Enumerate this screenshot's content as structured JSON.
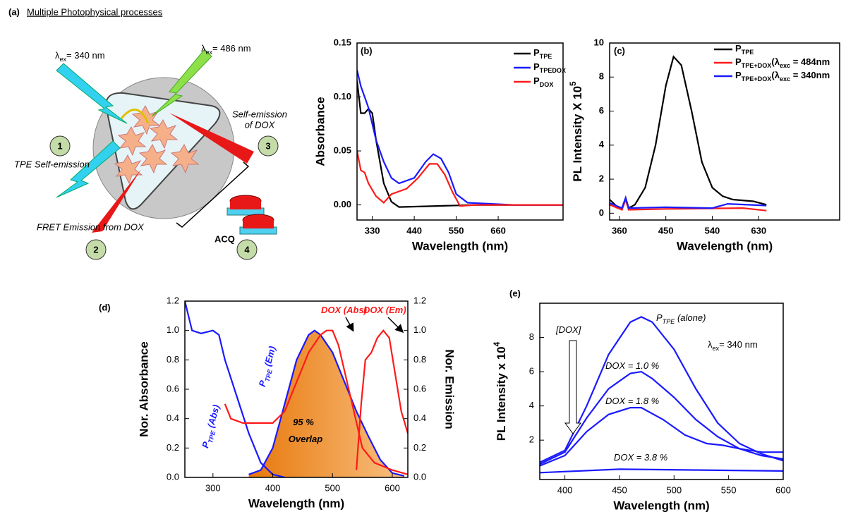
{
  "panel_a": {
    "label": "(a)",
    "title": "Multiple Photophysical processes",
    "excitation_1": [
      "λ",
      "ex",
      "= 340 nm"
    ],
    "excitation_2": [
      "λ",
      "ex",
      "= 486 nm"
    ],
    "self_emission_dox": [
      "Self-emission",
      "of DOX"
    ],
    "tpe_self_emission": "TPE Self-emission",
    "fret_emission": "FRET Emission from DOX",
    "acq": "ACQ",
    "steps": [
      "1",
      "2",
      "3",
      "4"
    ]
  },
  "chart_data": [
    {
      "type": "line",
      "panel_label": "(b)",
      "xlabel": "Wavelength (nm)",
      "ylabel": "Absorbance",
      "xlim": [
        290,
        830
      ],
      "ylim": [
        -0.014,
        0.15
      ],
      "xticks": [
        330,
        440,
        550,
        660
      ],
      "yticks": [
        {
          "value": 0,
          "label": "0.00"
        },
        {
          "value": 0.05,
          "label": "0.05"
        },
        {
          "value": 0.1,
          "label": "0.10"
        },
        {
          "value": 0.15,
          "label": "0.15"
        }
      ],
      "series": [
        {
          "name": [
            "P",
            "TPE"
          ],
          "color": "#000000",
          "x": [
            290,
            300,
            310,
            320,
            330,
            340,
            360,
            380,
            400,
            500,
            600,
            700,
            830
          ],
          "values": [
            0.115,
            0.085,
            0.085,
            0.089,
            0.085,
            0.06,
            0.02,
            0.003,
            -0.002,
            -0.001,
            0,
            0,
            0
          ]
        },
        {
          "name": [
            "P",
            "TPEDOX"
          ],
          "color": "#1a1aff",
          "x": [
            290,
            300,
            320,
            340,
            360,
            380,
            400,
            440,
            470,
            490,
            510,
            530,
            550,
            580,
            700,
            830
          ],
          "values": [
            0.125,
            0.11,
            0.09,
            0.06,
            0.04,
            0.025,
            0.02,
            0.025,
            0.04,
            0.047,
            0.043,
            0.03,
            0.01,
            0.002,
            0,
            0
          ]
        },
        {
          "name": [
            "P",
            "DOX"
          ],
          "color": "#ff1a1a",
          "x": [
            290,
            300,
            310,
            320,
            340,
            360,
            380,
            420,
            450,
            480,
            500,
            520,
            540,
            560,
            600,
            700,
            830
          ],
          "values": [
            0.05,
            0.032,
            0.03,
            0.02,
            0.008,
            0.002,
            0.01,
            0.015,
            0.025,
            0.038,
            0.038,
            0.028,
            0.012,
            -0.001,
            0,
            0,
            0
          ]
        }
      ]
    },
    {
      "type": "line",
      "panel_label": "(c)",
      "xlabel": "Wavelength (nm)",
      "ylabel": [
        "PL Intensity X 10",
        "5"
      ],
      "xlim": [
        341,
        787
      ],
      "ylim": [
        -0.4,
        10
      ],
      "xticks": [
        360,
        450,
        540,
        630
      ],
      "yticks": [
        0,
        2,
        4,
        6,
        8,
        10
      ],
      "series": [
        {
          "name": [
            "P",
            "TPE"
          ],
          "color": "#000000",
          "x": [
            341,
            355,
            365,
            372,
            378,
            390,
            410,
            430,
            450,
            465,
            480,
            500,
            520,
            540,
            560,
            580,
            620,
            645
          ],
          "values": [
            0.8,
            0.4,
            0.3,
            0.9,
            0.3,
            0.5,
            1.5,
            4,
            7.5,
            9.2,
            8.7,
            6,
            3,
            1.5,
            1,
            0.8,
            0.7,
            0.5
          ]
        },
        {
          "name": [
            "P",
            "TPE+DOX",
            "(λ",
            "exc",
            " = 484nm"
          ],
          "color": "#ff1a1a",
          "x": [
            341,
            365,
            372,
            378,
            450,
            600,
            645
          ],
          "values": [
            0.5,
            0.2,
            0.8,
            0.2,
            0.25,
            0.3,
            0.15
          ]
        },
        {
          "name": [
            "P",
            "TPE+DOX",
            "(λ",
            "exc",
            " = 340nm"
          ],
          "color": "#1a1aff",
          "x": [
            341,
            365,
            372,
            378,
            450,
            540,
            570,
            645
          ],
          "values": [
            0.6,
            0.3,
            0.9,
            0.3,
            0.35,
            0.3,
            0.55,
            0.45
          ]
        }
      ]
    },
    {
      "type": "line",
      "panel_label": "(d)",
      "xlabel": "Wavelength (nm)",
      "ylabel": "Nor. Absorbance",
      "y2label": "Nor. Emission",
      "xlim": [
        253,
        626
      ],
      "ylim": [
        0,
        1.2
      ],
      "y2lim": [
        0,
        1.2
      ],
      "xticks": [
        300,
        400,
        500,
        600
      ],
      "yticks": [
        {
          "value": 0,
          "label": "0.0"
        },
        0.2,
        0.4,
        0.6,
        0.8,
        {
          "value": 1,
          "label": "1.0"
        },
        1.2
      ],
      "y2ticks": [
        {
          "value": 0,
          "label": "0.0"
        },
        0.2,
        0.4,
        0.6,
        0.8,
        {
          "value": 1,
          "label": "1.0"
        },
        1.2
      ],
      "annotations": [
        [
          "DOX (Abs)"
        ],
        [
          "DOX (Em)"
        ],
        [
          "P",
          "TPE",
          " (Abs)"
        ],
        [
          "P",
          "TPE",
          " (Em)"
        ],
        [
          "95 %"
        ],
        [
          "Overlap"
        ]
      ],
      "series": [
        {
          "color": "#1a1aff",
          "fill": "#f39a2e",
          "axis": "y2",
          "x": [
            360,
            380,
            400,
            420,
            440,
            460,
            470,
            480,
            500,
            520,
            540,
            560,
            580,
            600,
            620
          ],
          "values": [
            0.02,
            0.05,
            0.2,
            0.5,
            0.8,
            0.97,
            1.0,
            0.97,
            0.85,
            0.65,
            0.45,
            0.28,
            0.12,
            0.03,
            0.01
          ]
        },
        {
          "color": "#1a1aff",
          "x": [
            253,
            265,
            280,
            300,
            310,
            320,
            340,
            360,
            380,
            400,
            420
          ],
          "values": [
            1.2,
            1.0,
            0.98,
            1.0,
            0.97,
            0.8,
            0.55,
            0.3,
            0.1,
            0.02,
            0
          ]
        },
        {
          "color": "#ff1a1a",
          "x": [
            320,
            330,
            350,
            400,
            420,
            440,
            460,
            480,
            490,
            500,
            510,
            530,
            550,
            570,
            600,
            626
          ],
          "values": [
            0.5,
            0.4,
            0.37,
            0.37,
            0.45,
            0.65,
            0.85,
            0.97,
            1.0,
            1.0,
            0.9,
            0.55,
            0.2,
            0.1,
            0.05,
            0.02
          ]
        },
        {
          "color": "#ff1a1a",
          "axis": "y2",
          "x": [
            540,
            548,
            555,
            565,
            575,
            585,
            595,
            605,
            615,
            626
          ],
          "values": [
            0.05,
            0.5,
            0.8,
            0.85,
            0.95,
            1.0,
            0.95,
            0.7,
            0.45,
            0.3
          ]
        }
      ]
    },
    {
      "type": "line",
      "panel_label": "(e)",
      "xlabel": "Wavelength (nm)",
      "ylabel": [
        "PL Intensity x 10",
        "4"
      ],
      "xlim": [
        377,
        600
      ],
      "ylim": [
        -0.3,
        10
      ],
      "xticks": [
        400,
        450,
        500,
        550,
        600
      ],
      "yticks": [
        2,
        4,
        6,
        8
      ],
      "annotations": [
        [
          "P",
          "TPE",
          " (alone)"
        ],
        [
          "DOX = 1.0 %"
        ],
        [
          "DOX = 1.8 %"
        ],
        [
          "DOX = 3.8 %"
        ],
        [
          "[DOX]"
        ],
        [
          "λ",
          "ex",
          "= 340 nm"
        ]
      ],
      "series": [
        {
          "color": "#1a1aff",
          "x": [
            377,
            400,
            420,
            440,
            460,
            470,
            480,
            500,
            520,
            540,
            560,
            580,
            600
          ],
          "values": [
            0.7,
            1.4,
            4,
            7,
            8.9,
            9.2,
            8.9,
            7.3,
            5,
            3,
            1.8,
            1.2,
            0.8
          ]
        },
        {
          "color": "#1a1aff",
          "x": [
            377,
            400,
            420,
            440,
            460,
            470,
            480,
            500,
            520,
            540,
            560,
            580,
            600
          ],
          "values": [
            0.6,
            1.3,
            3.3,
            5,
            5.9,
            6.0,
            5.6,
            4.5,
            3.2,
            2.2,
            1.5,
            1.3,
            1.3
          ]
        },
        {
          "color": "#1a1aff",
          "x": [
            377,
            400,
            420,
            440,
            460,
            470,
            490,
            510,
            530,
            545,
            560,
            580,
            600
          ],
          "values": [
            0.5,
            1.1,
            2.5,
            3.5,
            3.9,
            3.9,
            3.2,
            2.3,
            1.8,
            1.7,
            1.5,
            1.1,
            0.9
          ]
        },
        {
          "color": "#1a1aff",
          "x": [
            377,
            450,
            600
          ],
          "values": [
            0.1,
            0.3,
            0.2
          ]
        }
      ]
    }
  ]
}
